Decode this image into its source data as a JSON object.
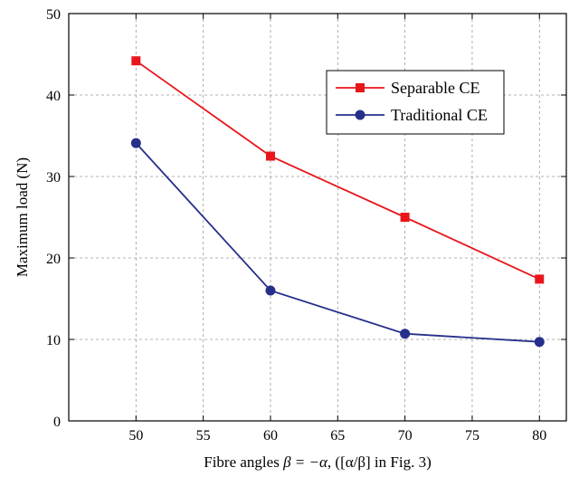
{
  "chart_data": {
    "type": "line",
    "xlabel_prefix": "Fibre angles ",
    "xlabel_math": "β = −α",
    "xlabel_suffix": ", ([α/β] in Fig. 3)",
    "ylabel": "Maximum load (N)",
    "xlim": [
      45,
      82
    ],
    "ylim": [
      0,
      50
    ],
    "xticks": [
      50,
      55,
      60,
      65,
      70,
      75,
      80
    ],
    "yticks": [
      0,
      10,
      20,
      30,
      40,
      50
    ],
    "grid": true,
    "legend_position": "top-right",
    "series": [
      {
        "name": "Separable CE",
        "color": "#e8161b",
        "marker": "square",
        "x": [
          50,
          60,
          70,
          80
        ],
        "values": [
          44.2,
          32.5,
          25.0,
          17.4
        ]
      },
      {
        "name": "Traditional CE",
        "color": "#262f8a",
        "marker": "circle",
        "x": [
          50,
          60,
          70,
          80
        ],
        "values": [
          34.1,
          16.0,
          10.7,
          9.7
        ]
      }
    ]
  }
}
